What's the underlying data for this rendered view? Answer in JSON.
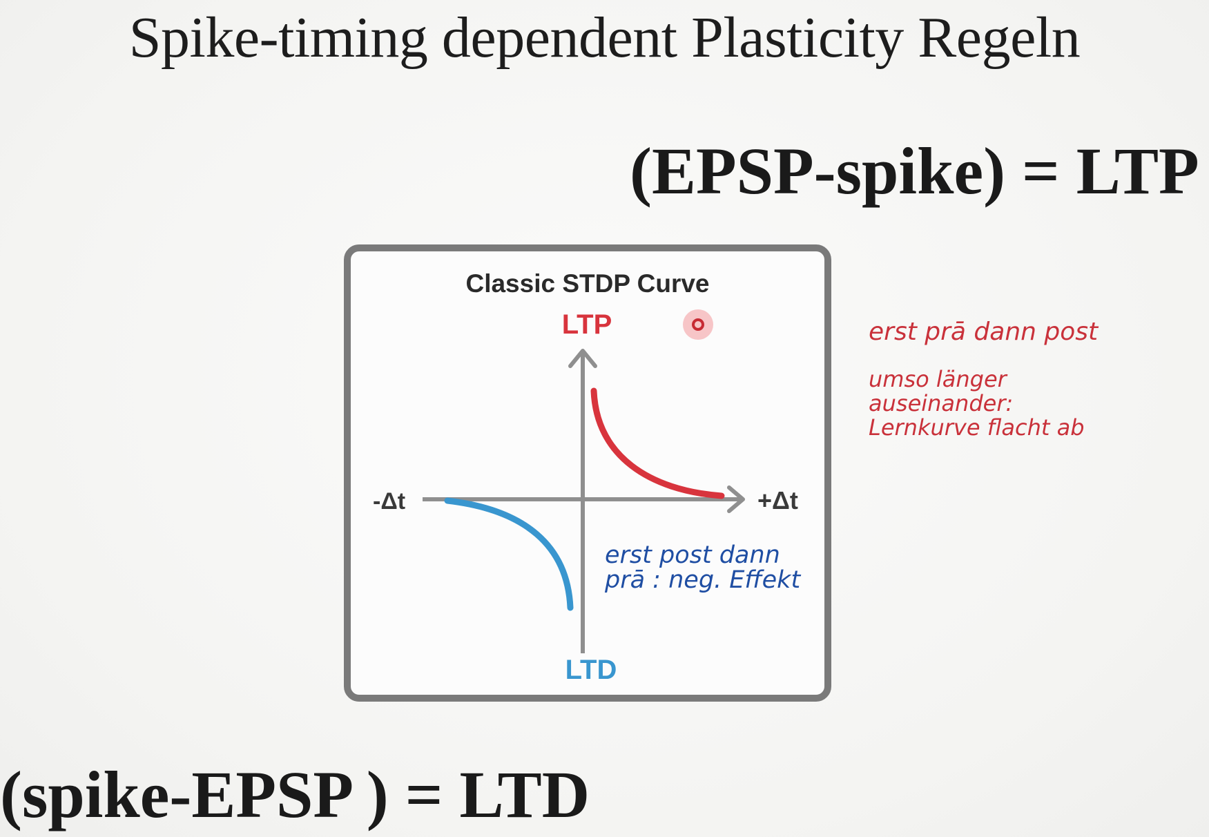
{
  "slide": {
    "title": "Spike-timing dependent Plasticity Regeln",
    "eq_ltp": "(EPSP-spike) = LTP",
    "eq_ltd": "(spike-EPSP ) = LTD"
  },
  "figure": {
    "title": "Classic STDP Curve",
    "ltp_label": "LTP",
    "ltd_label": "LTD",
    "neg_axis_label": "-Δt",
    "pos_axis_label": "+Δt"
  },
  "annotations": {
    "red": [
      "erst prā dann post",
      "umso länger",
      "auseinander:",
      "Lernkurve flacht ab"
    ],
    "blue": [
      "erst post dann",
      "prā : neg. Effekt"
    ]
  },
  "colors": {
    "ltp": "#d8343d",
    "ltd": "#3996cf",
    "axis": "#8f8f8f",
    "note_red": "#c9313a",
    "note_blue": "#1f4ea3"
  },
  "chart_data": {
    "type": "line",
    "title": "Classic STDP Curve",
    "xlabel": "",
    "ylabel": "",
    "series": [
      {
        "values": []
      },
      {
        "values": []
      }
    ]
  }
}
